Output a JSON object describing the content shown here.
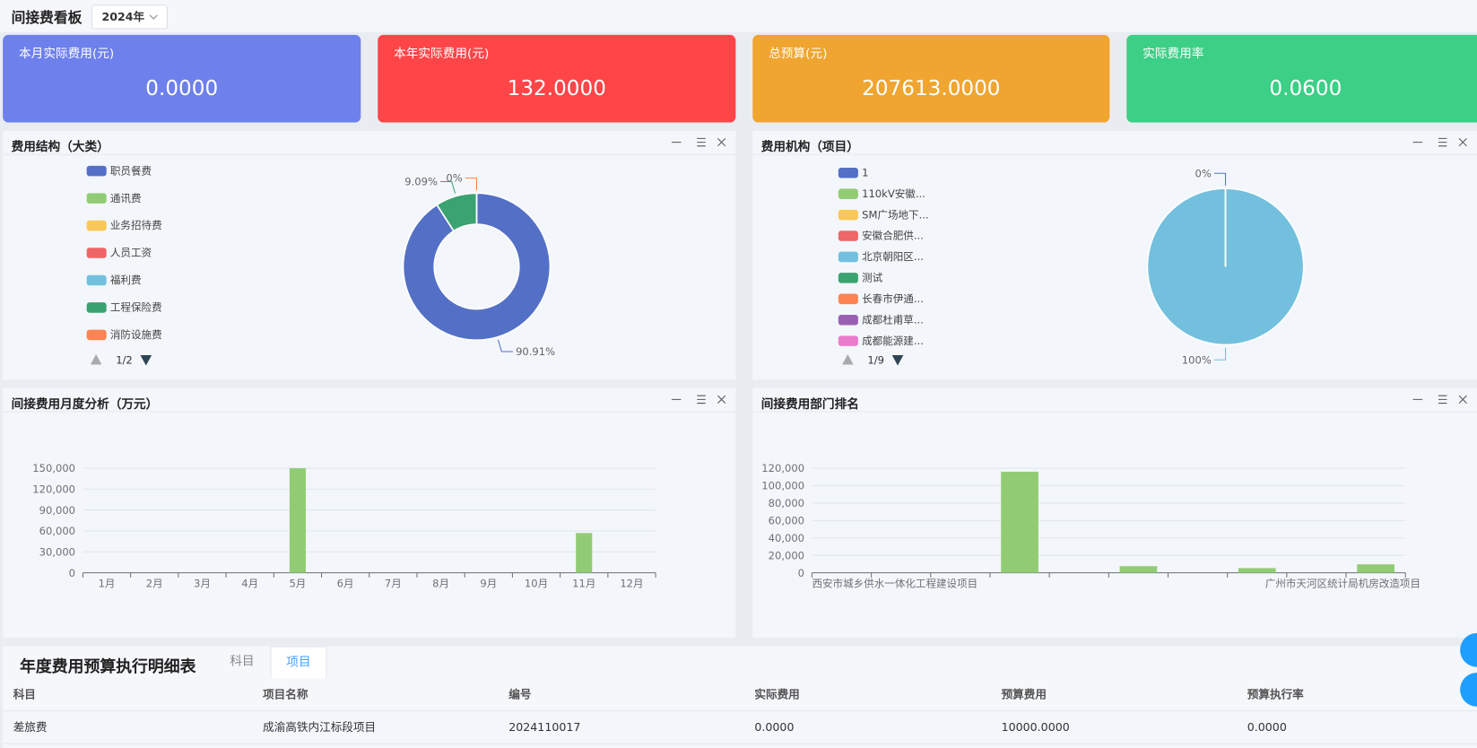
{
  "header": {
    "title": "间接费看板",
    "year": "2024年"
  },
  "cards": [
    {
      "label": "本月实际费用(元)",
      "value": "0.0000"
    },
    {
      "label": "本年实际费用(元)",
      "value": "132.0000"
    },
    {
      "label": "总预算(元)",
      "value": "207613.0000"
    },
    {
      "label": "实际费用率",
      "value": "0.0600"
    }
  ],
  "chart_data": [
    {
      "type": "pie",
      "title": "费用结构（大类）",
      "categories": [
        "职员餐费",
        "通讯费",
        "业务招待费",
        "人员工资",
        "福利费",
        "工程保险费",
        "消防设施费"
      ],
      "values": [
        90.91,
        0,
        0,
        0,
        0,
        9.09,
        0
      ],
      "value_labels": [
        "90.91%",
        null,
        null,
        null,
        null,
        "9.09%",
        "0%"
      ],
      "colors": [
        "#5470c6",
        "#91cc75",
        "#fac858",
        "#ee6666",
        "#73c0de",
        "#3ba272",
        "#fc8452"
      ],
      "legend_page": "1/2"
    },
    {
      "type": "pie",
      "title": "费用机构（项目）",
      "categories": [
        "1",
        "110kV安徽...",
        "SM广场地下...",
        "安徽合肥供...",
        "北京朝阳区...",
        "测试",
        "长春市伊通...",
        "成都杜甫草...",
        "成都能源建..."
      ],
      "values": [
        0,
        0,
        0,
        0,
        100,
        0,
        0,
        0,
        0
      ],
      "value_labels": [
        "0%",
        null,
        null,
        null,
        "100%",
        null,
        null,
        null,
        null
      ],
      "colors": [
        "#5470c6",
        "#91cc75",
        "#fac858",
        "#ee6666",
        "#73c0de",
        "#3ba272",
        "#fc8452",
        "#9a60b4",
        "#ea7ccc"
      ],
      "legend_page": "1/9"
    },
    {
      "type": "bar",
      "title": "间接费用月度分析（万元）",
      "categories": [
        "1月",
        "2月",
        "3月",
        "4月",
        "5月",
        "6月",
        "7月",
        "8月",
        "9月",
        "10月",
        "11月",
        "12月"
      ],
      "values": [
        0,
        0,
        0,
        0,
        150000,
        0,
        0,
        0,
        0,
        0,
        57000,
        0
      ],
      "color": "#91cc75",
      "ylim": [
        0,
        150000
      ],
      "yticks": [
        0,
        {
          "value": 30000,
          "label": "30,000"
        },
        {
          "value": 60000,
          "label": "60,000"
        },
        {
          "value": 90000,
          "label": "90,000"
        },
        {
          "value": 120000,
          "label": "120,000"
        },
        {
          "value": 150000,
          "label": "150,000"
        }
      ],
      "grid": true
    },
    {
      "type": "bar",
      "title": "间接费用部门排名",
      "categories": [
        "西安市城乡供水一体化工程建设项目",
        null,
        null,
        null,
        null,
        null,
        null,
        null,
        null,
        "广州市天河区统计局机房改造项目"
      ],
      "values": [
        0,
        0,
        0,
        116000,
        0,
        7600,
        0,
        5400,
        0,
        9700
      ],
      "color": "#91cc75",
      "ylim": [
        0,
        120000
      ],
      "yticks": [
        0,
        {
          "value": 20000,
          "label": "20,000"
        },
        {
          "value": 40000,
          "label": "40,000"
        },
        {
          "value": 60000,
          "label": "60,000"
        },
        {
          "value": 80000,
          "label": "80,000"
        },
        {
          "value": 100000,
          "label": "100,000"
        },
        {
          "value": 120000,
          "label": "120,000"
        }
      ],
      "grid": true
    }
  ],
  "table": {
    "title": "年度费用预算执行明细表",
    "tabs": [
      "科目",
      "项目"
    ],
    "columns": [
      "科目",
      "项目名称",
      "编号",
      "实际费用",
      "预算费用",
      "预算执行率"
    ],
    "rows": [
      [
        "差旅费",
        "成渝高铁内江标段项目",
        "2024110017",
        "0.0000",
        "10000.0000",
        "0.0000"
      ]
    ]
  }
}
